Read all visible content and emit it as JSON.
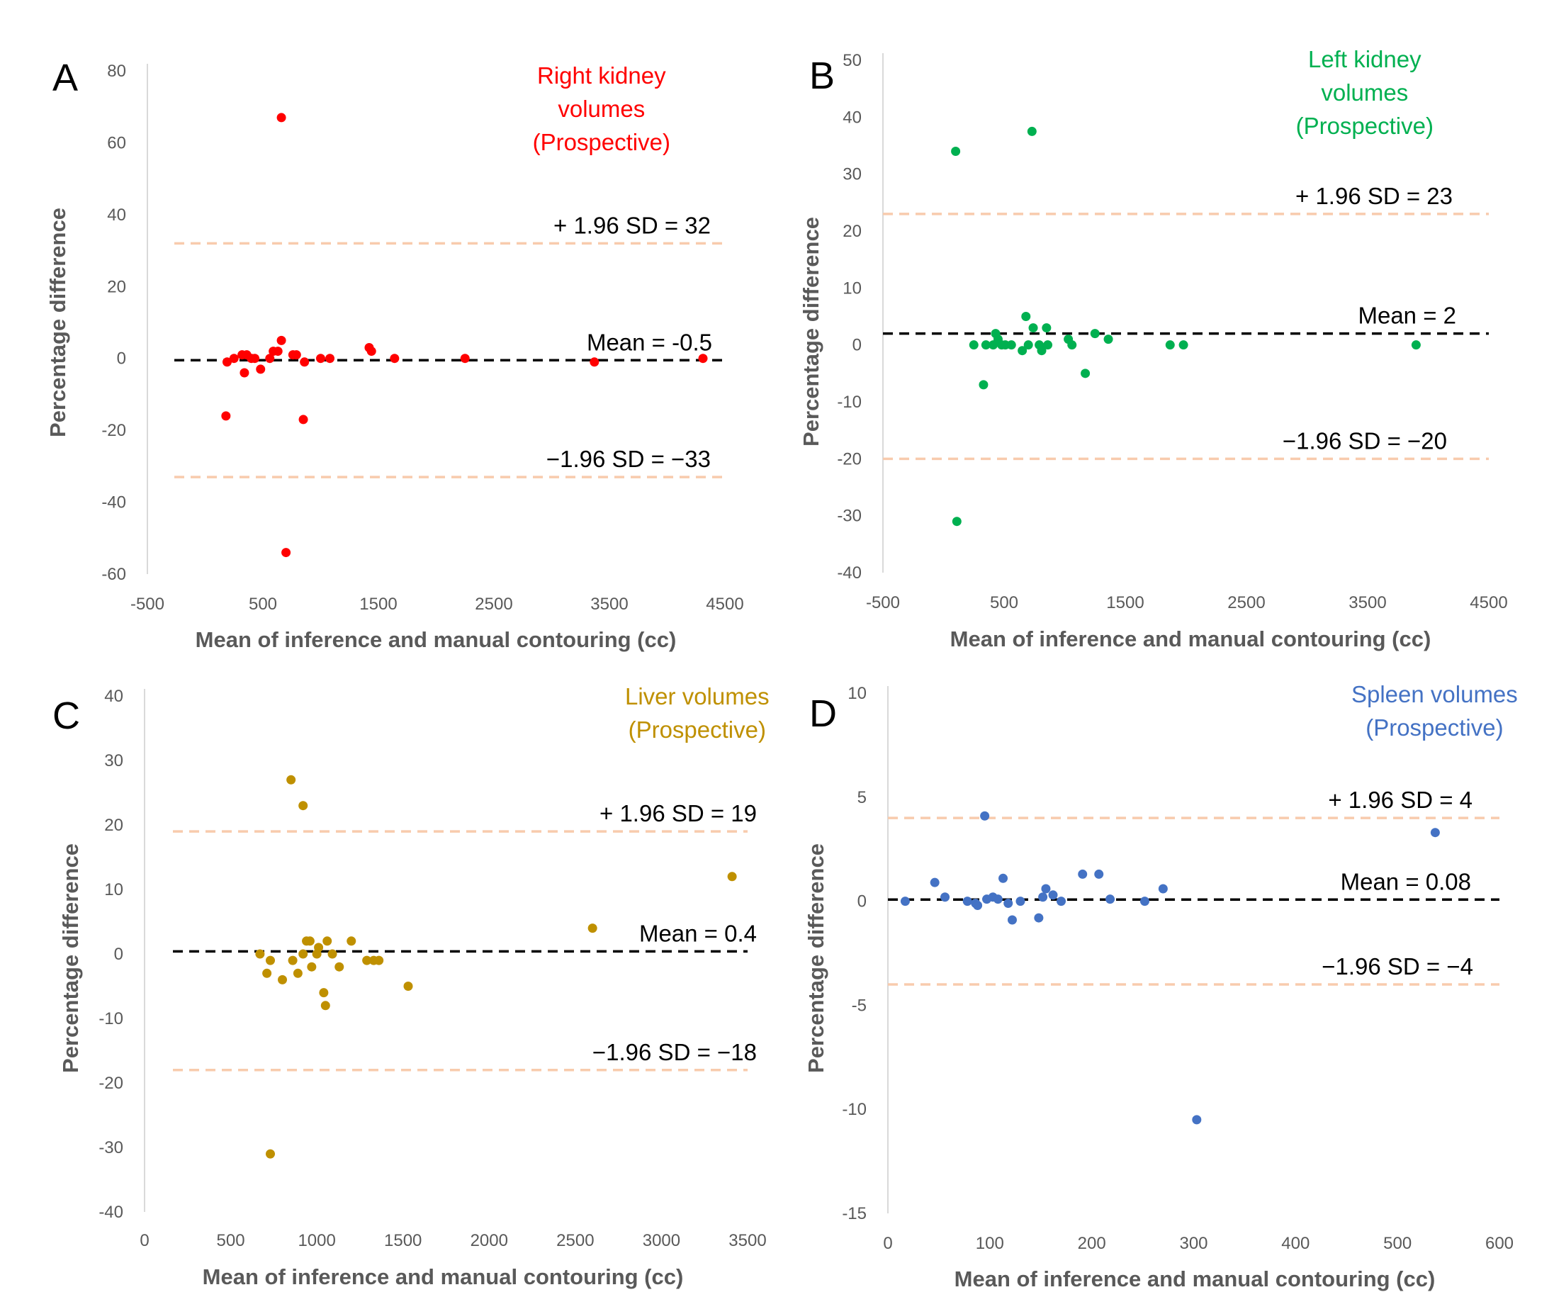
{
  "chart_data": [
    {
      "panel_label": "A",
      "type": "scatter",
      "title_lines": [
        "Right kidney",
        "volumes",
        "(Prospective)"
      ],
      "color": "#ff0000",
      "xlabel": "Mean of inference and manual contouring (cc)",
      "ylabel": "Percentage difference",
      "xlim": [
        -500,
        4500
      ],
      "ylim": [
        -60,
        80
      ],
      "xticks": [
        -500,
        500,
        1500,
        2500,
        3500,
        4500
      ],
      "yticks": [
        -60,
        -40,
        -20,
        0,
        20,
        40,
        60,
        80
      ],
      "mean": {
        "value": -0.5,
        "label": "Mean = -0.5"
      },
      "upper_loa": {
        "value": 32,
        "label": "+ 1.96 SD = 32"
      },
      "lower_loa": {
        "value": -33,
        "label": "−1.96 SD = −33"
      },
      "points": [
        [
          660,
          67
        ],
        [
          180,
          -16
        ],
        [
          190,
          -1
        ],
        [
          250,
          0
        ],
        [
          320,
          1
        ],
        [
          340,
          -4
        ],
        [
          360,
          1
        ],
        [
          400,
          0
        ],
        [
          430,
          0
        ],
        [
          480,
          -3
        ],
        [
          560,
          0
        ],
        [
          590,
          2
        ],
        [
          630,
          2
        ],
        [
          660,
          5
        ],
        [
          700,
          -54
        ],
        [
          760,
          1
        ],
        [
          790,
          1
        ],
        [
          850,
          -17
        ],
        [
          860,
          -1
        ],
        [
          1000,
          0
        ],
        [
          1080,
          0
        ],
        [
          1420,
          3
        ],
        [
          1440,
          2
        ],
        [
          1640,
          0
        ],
        [
          2250,
          0
        ],
        [
          3370,
          -1
        ],
        [
          4310,
          0
        ]
      ]
    },
    {
      "panel_label": "B",
      "type": "scatter",
      "title_lines": [
        "Left kidney",
        "volumes",
        "(Prospective)"
      ],
      "color": "#00b050",
      "xlabel": "Mean of inference and manual contouring (cc)",
      "ylabel": "Percentage difference",
      "xlim": [
        -500,
        4500
      ],
      "ylim": [
        -40,
        50
      ],
      "xticks": [
        -500,
        500,
        1500,
        2500,
        3500,
        4500
      ],
      "yticks": [
        -40,
        -30,
        -20,
        -10,
        0,
        10,
        20,
        30,
        40,
        50
      ],
      "mean": {
        "value": 2,
        "label": "Mean = 2"
      },
      "upper_loa": {
        "value": 23,
        "label": "+ 1.96 SD = 23"
      },
      "lower_loa": {
        "value": -20,
        "label": "−1.96 SD = −20"
      },
      "points": [
        [
          730,
          37.5
        ],
        [
          100,
          34
        ],
        [
          110,
          -31
        ],
        [
          250,
          0
        ],
        [
          330,
          -7
        ],
        [
          350,
          0
        ],
        [
          410,
          0
        ],
        [
          430,
          2
        ],
        [
          450,
          1
        ],
        [
          480,
          0
        ],
        [
          510,
          0
        ],
        [
          560,
          0
        ],
        [
          650,
          -1
        ],
        [
          680,
          5
        ],
        [
          700,
          0
        ],
        [
          740,
          3
        ],
        [
          790,
          0
        ],
        [
          810,
          -1
        ],
        [
          850,
          3
        ],
        [
          860,
          0
        ],
        [
          1030,
          1
        ],
        [
          1060,
          0
        ],
        [
          1170,
          -5
        ],
        [
          1250,
          2
        ],
        [
          1360,
          1
        ],
        [
          1870,
          0
        ],
        [
          1980,
          0
        ],
        [
          3900,
          0
        ]
      ]
    },
    {
      "panel_label": "C",
      "type": "scatter",
      "title_lines": [
        "Liver volumes",
        "(Prospective)"
      ],
      "color": "#bf9000",
      "xlabel": "Mean of inference and manual contouring (cc)",
      "ylabel": "Percentage difference",
      "xlim": [
        0,
        3500
      ],
      "ylim": [
        -40,
        40
      ],
      "xticks": [
        0,
        500,
        1000,
        1500,
        2000,
        2500,
        3000,
        3500
      ],
      "yticks": [
        -40,
        -30,
        -20,
        -10,
        0,
        10,
        20,
        30,
        40
      ],
      "mean": {
        "value": 0.4,
        "label": "Mean = 0.4"
      },
      "upper_loa": {
        "value": 19,
        "label": "+ 1.96 SD = 19"
      },
      "lower_loa": {
        "value": -18,
        "label": "−1.96 SD = −18"
      },
      "points": [
        [
          850,
          27
        ],
        [
          920,
          23
        ],
        [
          730,
          -31
        ],
        [
          670,
          0
        ],
        [
          710,
          -3
        ],
        [
          730,
          -1
        ],
        [
          800,
          -4
        ],
        [
          860,
          -1
        ],
        [
          890,
          -3
        ],
        [
          920,
          0
        ],
        [
          940,
          2
        ],
        [
          960,
          2
        ],
        [
          970,
          -2
        ],
        [
          1000,
          0
        ],
        [
          1010,
          1
        ],
        [
          1040,
          -6
        ],
        [
          1050,
          -8
        ],
        [
          1060,
          2
        ],
        [
          1090,
          0
        ],
        [
          1130,
          -2
        ],
        [
          1200,
          2
        ],
        [
          1290,
          -1
        ],
        [
          1330,
          -1
        ],
        [
          1360,
          -1
        ],
        [
          1530,
          -5
        ],
        [
          2600,
          4
        ],
        [
          3410,
          12
        ]
      ]
    },
    {
      "panel_label": "D",
      "type": "scatter",
      "title_lines": [
        "Spleen volumes",
        "(Prospective)"
      ],
      "color": "#4472c4",
      "xlabel": "Mean of inference and manual contouring (cc)",
      "ylabel": "Percentage difference",
      "xlim": [
        0,
        600
      ],
      "ylim": [
        -15,
        10
      ],
      "xticks": [
        0,
        100,
        200,
        300,
        400,
        500,
        600
      ],
      "yticks": [
        -15,
        -10,
        -5,
        0,
        5,
        10
      ],
      "mean": {
        "value": 0.08,
        "label": "Mean = 0.08"
      },
      "upper_loa": {
        "value": 4,
        "label": "+ 1.96 SD = 4"
      },
      "lower_loa": {
        "value": -4,
        "label": "−1.96 SD = −4"
      },
      "points": [
        [
          95,
          4.1
        ],
        [
          537,
          3.3
        ],
        [
          303,
          -10.5
        ],
        [
          17,
          0
        ],
        [
          46,
          0.9
        ],
        [
          56,
          0.2
        ],
        [
          78,
          0
        ],
        [
          86,
          -0.1
        ],
        [
          88,
          -0.2
        ],
        [
          97,
          0.1
        ],
        [
          103,
          0.2
        ],
        [
          108,
          0.1
        ],
        [
          113,
          1.1
        ],
        [
          118,
          -0.1
        ],
        [
          122,
          -0.9
        ],
        [
          130,
          0
        ],
        [
          148,
          -0.8
        ],
        [
          152,
          0.2
        ],
        [
          155,
          0.6
        ],
        [
          162,
          0.3
        ],
        [
          170,
          0
        ],
        [
          191,
          1.3
        ],
        [
          207,
          1.3
        ],
        [
          218,
          0.1
        ],
        [
          252,
          0
        ],
        [
          270,
          0.6
        ]
      ]
    }
  ]
}
